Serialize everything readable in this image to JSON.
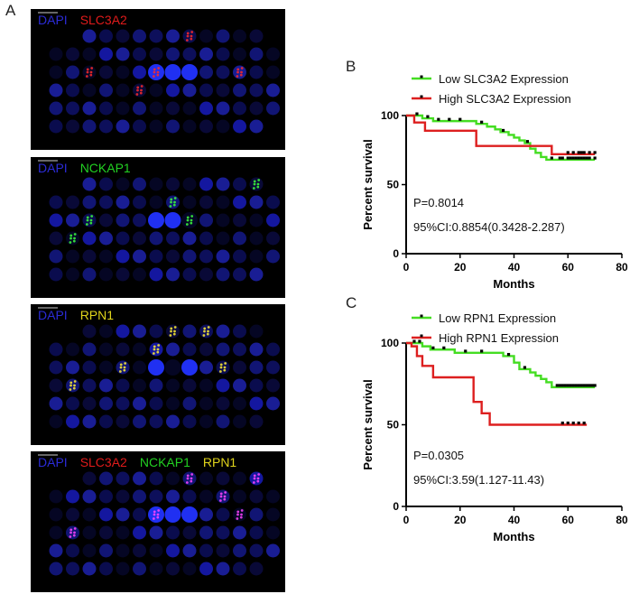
{
  "panel_labels": {
    "a": "A",
    "b": "B",
    "c": "C"
  },
  "image_panels": [
    {
      "stains": [
        {
          "text": "DAPI",
          "color": "#2b2bd6"
        },
        {
          "text": "SLC3A2",
          "color": "#e01b1b"
        }
      ]
    },
    {
      "stains": [
        {
          "text": "DAPI",
          "color": "#2b2bd6"
        },
        {
          "text": "NCKAP1",
          "color": "#22d022"
        }
      ]
    },
    {
      "stains": [
        {
          "text": "DAPI",
          "color": "#2b2bd6"
        },
        {
          "text": "RPN1",
          "color": "#e0d41b"
        }
      ]
    },
    {
      "stains": [
        {
          "text": "DAPI",
          "color": "#2b2bd6"
        },
        {
          "text": "SLC3A2",
          "color": "#e01b1b"
        },
        {
          "text": "NCKAP1",
          "color": "#22d022"
        },
        {
          "text": "RPN1",
          "color": "#e0d41b"
        }
      ]
    }
  ],
  "chart_data": [
    {
      "type": "line",
      "panel": "B",
      "xlabel": "Months",
      "ylabel": "Percent survival",
      "xlim": [
        0,
        80
      ],
      "ylim": [
        0,
        100
      ],
      "xticks": [
        0,
        20,
        40,
        60,
        80
      ],
      "yticks": [
        0,
        50,
        100
      ],
      "annotations": [
        "P=0.8014",
        "95%CI:0.8854(0.3428-2.287)"
      ],
      "series": [
        {
          "name": "Low SLC3A2 Expression",
          "color": "#44dd22",
          "steps": [
            [
              0,
              100
            ],
            [
              6,
              98
            ],
            [
              10,
              96
            ],
            [
              24,
              96
            ],
            [
              26,
              94
            ],
            [
              30,
              92
            ],
            [
              33,
              90
            ],
            [
              35,
              88
            ],
            [
              38,
              86
            ],
            [
              40,
              84
            ],
            [
              42,
              82
            ],
            [
              44,
              80
            ],
            [
              46,
              76
            ],
            [
              48,
              73
            ],
            [
              50,
              70
            ],
            [
              52,
              68
            ],
            [
              70,
              68
            ]
          ],
          "censor_x": [
            4,
            8,
            12,
            16,
            20,
            28,
            36,
            45,
            54,
            57,
            58,
            60,
            61,
            62,
            63,
            64,
            65,
            66,
            67,
            68,
            70
          ]
        },
        {
          "name": "High SLC3A2 Expression",
          "color": "#dd1f1f",
          "steps": [
            [
              0,
              100
            ],
            [
              3,
              95
            ],
            [
              7,
              89
            ],
            [
              25,
              89
            ],
            [
              26,
              78
            ],
            [
              53,
              78
            ],
            [
              54,
              72
            ],
            [
              70,
              72
            ]
          ],
          "censor_x": [
            60,
            62,
            64,
            65,
            66,
            68,
            70
          ]
        }
      ]
    },
    {
      "type": "line",
      "panel": "C",
      "xlabel": "Months",
      "ylabel": "Percent survival",
      "xlim": [
        0,
        80
      ],
      "ylim": [
        0,
        100
      ],
      "xticks": [
        0,
        20,
        40,
        60,
        80
      ],
      "yticks": [
        0,
        50,
        100
      ],
      "annotations": [
        "P=0.0305",
        "95%CI:3.59(1.127-11.43)"
      ],
      "series": [
        {
          "name": "Low RPN1 Expression",
          "color": "#44dd22",
          "steps": [
            [
              0,
              100
            ],
            [
              6,
              98
            ],
            [
              9,
              96
            ],
            [
              16,
              96
            ],
            [
              18,
              94
            ],
            [
              34,
              94
            ],
            [
              36,
              92
            ],
            [
              40,
              88
            ],
            [
              42,
              84
            ],
            [
              46,
              82
            ],
            [
              48,
              80
            ],
            [
              50,
              78
            ],
            [
              52,
              76
            ],
            [
              54,
              73
            ],
            [
              70,
              73
            ]
          ],
          "censor_x": [
            3,
            5,
            10,
            14,
            22,
            28,
            38,
            44,
            56,
            57,
            58,
            59,
            60,
            61,
            62,
            63,
            64,
            65,
            66,
            67,
            68,
            69,
            70
          ]
        },
        {
          "name": "High RPN1 Expression",
          "color": "#dd1f1f",
          "steps": [
            [
              0,
              100
            ],
            [
              2,
              98
            ],
            [
              4,
              92
            ],
            [
              6,
              86
            ],
            [
              10,
              79
            ],
            [
              24,
              79
            ],
            [
              25,
              64
            ],
            [
              28,
              57
            ],
            [
              31,
              50
            ],
            [
              67,
              50
            ]
          ],
          "censor_x": [
            58,
            60,
            62,
            64,
            66
          ]
        }
      ]
    }
  ]
}
